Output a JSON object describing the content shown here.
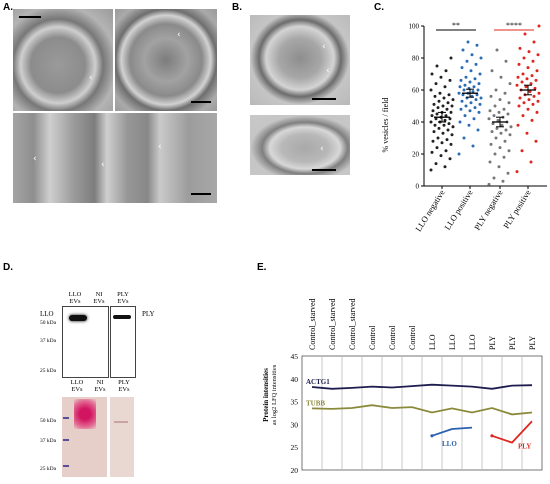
{
  "panels": {
    "A": "A.",
    "B": "B.",
    "C": "C.",
    "D": "D.",
    "E": "E."
  },
  "panel_d": {
    "top_headers": [
      {
        "id": "llo",
        "line1": "LLO",
        "line2": "EVs"
      },
      {
        "id": "ni",
        "line1": "NI",
        "line2": "EVs"
      },
      {
        "id": "ply",
        "line1": "PLY",
        "line2": "EVs"
      }
    ],
    "bottom_headers": [
      {
        "id": "llo",
        "line1": "LLO",
        "line2": "EVs"
      },
      {
        "id": "ni",
        "line1": "NI",
        "line2": "EVs"
      },
      {
        "id": "ply",
        "line1": "PLY",
        "line2": "EVs"
      }
    ],
    "left_label": "LLO",
    "right_label": "PLY",
    "top_markers": [
      "50 kDa",
      "37 kDa",
      "25 kDa"
    ],
    "bottom_markers": [
      "50 kDa",
      "37 kDa",
      "25 kDa"
    ]
  },
  "chart_data": [
    {
      "type": "scatter",
      "panel": "C",
      "ylabel": "% vesicles / field",
      "ylim": [
        0,
        100
      ],
      "yticks": [
        0,
        20,
        40,
        60,
        80,
        100
      ],
      "categories": [
        "LLO negative",
        "LLO positive",
        "PLY negative",
        "PLY positive"
      ],
      "colors": [
        "#222222",
        "#2a6cb5",
        "#777777",
        "#e0261f"
      ],
      "means": [
        43,
        58,
        40,
        60
      ],
      "sem": [
        3,
        2.5,
        3,
        3
      ],
      "significance": [
        {
          "from": 0,
          "to": 1,
          "label": "**"
        },
        {
          "from": 2,
          "to": 3,
          "label": "****"
        }
      ],
      "series": [
        {
          "values": [
            10,
            12,
            14,
            17,
            19,
            21,
            22,
            24,
            26,
            27,
            28,
            29,
            30,
            32,
            33,
            34,
            35,
            36,
            37,
            38,
            38,
            39,
            40,
            40,
            41,
            42,
            42,
            43,
            44,
            44,
            45,
            46,
            46,
            47,
            48,
            49,
            50,
            50,
            51,
            52,
            53,
            54,
            55,
            56,
            57,
            58,
            60,
            62,
            64,
            66,
            68,
            70,
            72,
            75,
            80
          ]
        },
        {
          "values": [
            20,
            25,
            30,
            35,
            38,
            40,
            42,
            44,
            46,
            47,
            48,
            49,
            50,
            51,
            52,
            53,
            54,
            55,
            55,
            56,
            57,
            57,
            58,
            58,
            59,
            60,
            60,
            61,
            62,
            62,
            63,
            64,
            65,
            66,
            67,
            68,
            70,
            72,
            74,
            76,
            78,
            80,
            82,
            85,
            88,
            90
          ]
        },
        {
          "values": [
            1,
            3,
            5,
            8,
            12,
            15,
            18,
            20,
            22,
            24,
            26,
            28,
            30,
            32,
            33,
            34,
            35,
            36,
            37,
            38,
            39,
            40,
            41,
            42,
            43,
            44,
            45,
            46,
            47,
            48,
            50,
            52,
            54,
            56,
            58,
            60,
            64,
            68,
            72,
            78,
            85
          ]
        },
        {
          "values": [
            9,
            15,
            22,
            28,
            33,
            38,
            41,
            44,
            46,
            48,
            50,
            51,
            52,
            53,
            54,
            55,
            56,
            57,
            58,
            59,
            60,
            61,
            62,
            63,
            64,
            65,
            66,
            67,
            68,
            69,
            70,
            72,
            74,
            76,
            78,
            80,
            82,
            84,
            86,
            90,
            95,
            100
          ]
        }
      ]
    },
    {
      "type": "line",
      "panel": "E",
      "ylabel_line1": "Protein intensities",
      "ylabel_line2": "as log2 LFQ intensities",
      "ylim": [
        20,
        45
      ],
      "yticks": [
        20,
        25,
        30,
        35,
        40,
        45
      ],
      "x_labels": [
        "Control_starved",
        "Control_starved",
        "Control_starved",
        "Control",
        "Control",
        "Control",
        "LLO",
        "LLO",
        "LLO",
        "PLY",
        "PLY",
        "PLY"
      ],
      "series": [
        {
          "name": "ACTG1",
          "color": "#1d1d4f",
          "values": [
            38.2,
            37.8,
            38.0,
            38.3,
            38.1,
            38.4,
            38.7,
            38.5,
            38.3,
            37.8,
            38.5,
            38.6
          ]
        },
        {
          "name": "TUBB",
          "color": "#8b8a3a",
          "values": [
            33.5,
            33.4,
            33.6,
            34.2,
            33.6,
            33.8,
            32.6,
            33.5,
            32.6,
            33.6,
            32.2,
            32.6
          ]
        },
        {
          "name": "LLO",
          "color": "#2b5fb0",
          "values": [
            null,
            null,
            null,
            null,
            null,
            null,
            27.5,
            29.0,
            29.3,
            null,
            null,
            null
          ]
        },
        {
          "name": "PLY",
          "color": "#e0261f",
          "values": [
            null,
            null,
            null,
            null,
            null,
            null,
            null,
            null,
            null,
            27.5,
            26.0,
            30.7
          ]
        }
      ]
    }
  ]
}
